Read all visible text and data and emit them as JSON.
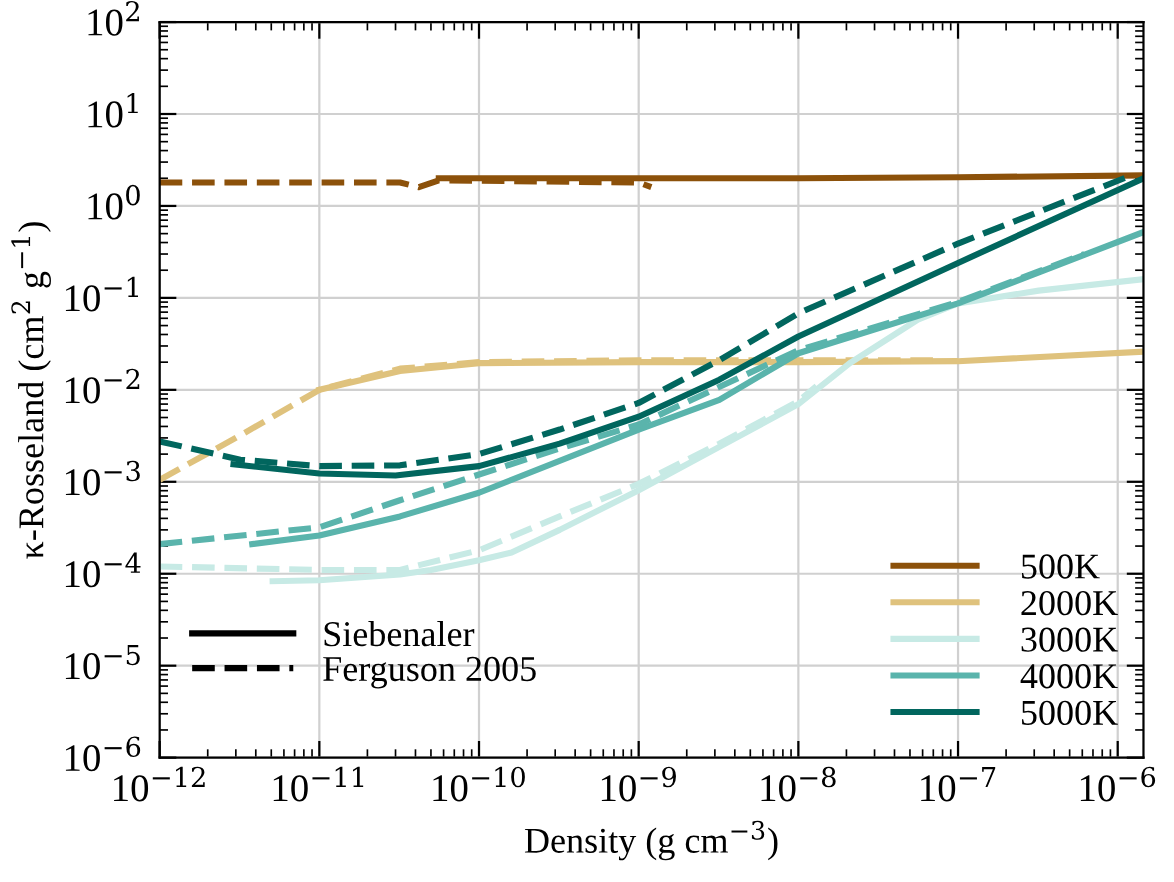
{
  "chart_data": {
    "type": "line",
    "xlabel": "Density (g cm$^{−3}$)",
    "ylabel": "κ-Rosseland (cm$^{2}$ g$^{−1}$)",
    "log": "xy",
    "xlim": [
      1e-12,
      1.45e-06
    ],
    "ylim": [
      1e-06,
      100
    ],
    "xticks": [
      {
        "value": 1e-12,
        "label": "10$^{−12}$"
      },
      {
        "value": 1e-11,
        "label": "10$^{−11}$"
      },
      {
        "value": 1e-10,
        "label": "10$^{−10}$"
      },
      {
        "value": 1e-09,
        "label": "10$^{−9}$"
      },
      {
        "value": 1e-08,
        "label": "10$^{−8}$"
      },
      {
        "value": 1e-07,
        "label": "10$^{−7}$"
      },
      {
        "value": 1e-06,
        "label": "10$^{−6}$"
      }
    ],
    "yticks": [
      {
        "value": 1e-06,
        "label": "10$^{−6}$"
      },
      {
        "value": 1e-05,
        "label": "10$^{−5}$"
      },
      {
        "value": 0.0001,
        "label": "10$^{−4}$"
      },
      {
        "value": 0.001,
        "label": "10$^{−3}$"
      },
      {
        "value": 0.01,
        "label": "10$^{−2}$"
      },
      {
        "value": 0.1,
        "label": "10$^{−1}$"
      },
      {
        "value": 1,
        "label": "10$^{0}$"
      },
      {
        "value": 10,
        "label": "10$^{1}$"
      },
      {
        "value": 100,
        "label": "10$^{2}$"
      }
    ],
    "grid": true,
    "legend": "bottom right",
    "marker": "none",
    "annotations": [
      "Siebenaler",
      "Ferguson 2005"
    ],
    "series": [
      {
        "name": "500K",
        "color": "#8c510a",
        "line_style": "solid",
        "x": [
          5.6e-11,
          1e-09,
          1e-08,
          1e-07,
          1.45e-06
        ],
        "values": [
          2.0,
          2.0,
          2.0,
          2.05,
          2.15
        ]
      },
      {
        "color": "#8c510a",
        "line_style": "dashed",
        "x": [
          1e-12,
          3.2e-11,
          4.2e-11,
          5.6e-11,
          1e-09,
          1.2e-09
        ],
        "values": [
          1.8,
          1.8,
          1.6,
          1.9,
          1.8,
          1.6
        ]
      },
      {
        "name": "2000K",
        "color": "#dfc27d",
        "line_style": "solid",
        "x": [
          1e-11,
          3.2e-11,
          1e-10,
          1e-09,
          1e-08,
          1e-07,
          1.45e-06
        ],
        "values": [
          0.01,
          0.016,
          0.0195,
          0.02,
          0.02,
          0.0205,
          0.026
        ]
      },
      {
        "color": "#dfc27d",
        "line_style": "dashed",
        "x": [
          1e-12,
          3.2e-12,
          1e-11,
          3.2e-11,
          1e-10,
          1e-09,
          1e-08,
          7.6e-08
        ],
        "values": [
          0.00105,
          0.0032,
          0.01,
          0.017,
          0.02,
          0.021,
          0.021,
          0.021
        ]
      },
      {
        "name": "3000K",
        "color": "#c7eae5",
        "line_style": "solid",
        "x": [
          5.1e-12,
          1e-11,
          3.2e-11,
          5e-11,
          1e-10,
          1.6e-10,
          3.2e-10,
          1e-09,
          3.2e-09,
          1e-08,
          2.1e-08,
          5.6e-08,
          1e-07,
          3.2e-07,
          1.45e-06
        ],
        "values": [
          8.3e-05,
          8.5e-05,
          9.8e-05,
          0.00011,
          0.00014,
          0.00017,
          0.0003,
          0.00081,
          0.0024,
          0.007,
          0.0195,
          0.058,
          0.087,
          0.12,
          0.16
        ]
      },
      {
        "color": "#c7eae5",
        "line_style": "dashed",
        "x": [
          1e-12,
          1e-11,
          3.2e-11,
          1e-10,
          3.2e-10,
          1e-09,
          3.2e-09,
          1e-08,
          1.3e-08
        ],
        "values": [
          0.00012,
          0.00011,
          0.00011,
          0.00018,
          0.00042,
          0.00095,
          0.0026,
          0.0075,
          0.011
        ]
      },
      {
        "name": "4000K",
        "color": "#5ab4ac",
        "line_style": "solid",
        "x": [
          3.8e-12,
          1e-11,
          3.2e-11,
          1e-10,
          1e-09,
          3.2e-09,
          1e-08,
          1e-07,
          1.45e-06
        ],
        "values": [
          0.00021,
          0.00026,
          0.00042,
          0.00076,
          0.0037,
          0.0078,
          0.025,
          0.087,
          0.52
        ]
      },
      {
        "color": "#5ab4ac",
        "line_style": "dashed",
        "x": [
          1e-12,
          1e-11,
          3.2e-11,
          1e-10,
          3.2e-10,
          1e-09,
          1e-08,
          1e-07,
          6.2e-07
        ],
        "values": [
          0.00021,
          0.00032,
          0.00063,
          0.0012,
          0.0023,
          0.0042,
          0.027,
          0.09,
          0.3
        ]
      },
      {
        "name": "5000K",
        "color": "#01665e",
        "line_style": "solid",
        "x": [
          2.9e-12,
          1e-11,
          3e-11,
          1e-10,
          3.2e-10,
          1e-09,
          3.2e-09,
          1e-08,
          1e-07,
          1.45e-06
        ],
        "values": [
          0.00155,
          0.00123,
          0.00117,
          0.00148,
          0.0026,
          0.0051,
          0.0129,
          0.038,
          0.24,
          2.0
        ]
      },
      {
        "color": "#01665e",
        "line_style": "dashed",
        "x": [
          1e-12,
          3.2e-12,
          1e-11,
          3.2e-11,
          1e-10,
          3.2e-10,
          1e-09,
          3.2e-09,
          1e-08,
          1e-07,
          1.26e-06
        ],
        "values": [
          0.00275,
          0.00174,
          0.00148,
          0.00151,
          0.002,
          0.0037,
          0.0072,
          0.021,
          0.068,
          0.39,
          2.2
        ]
      }
    ]
  }
}
